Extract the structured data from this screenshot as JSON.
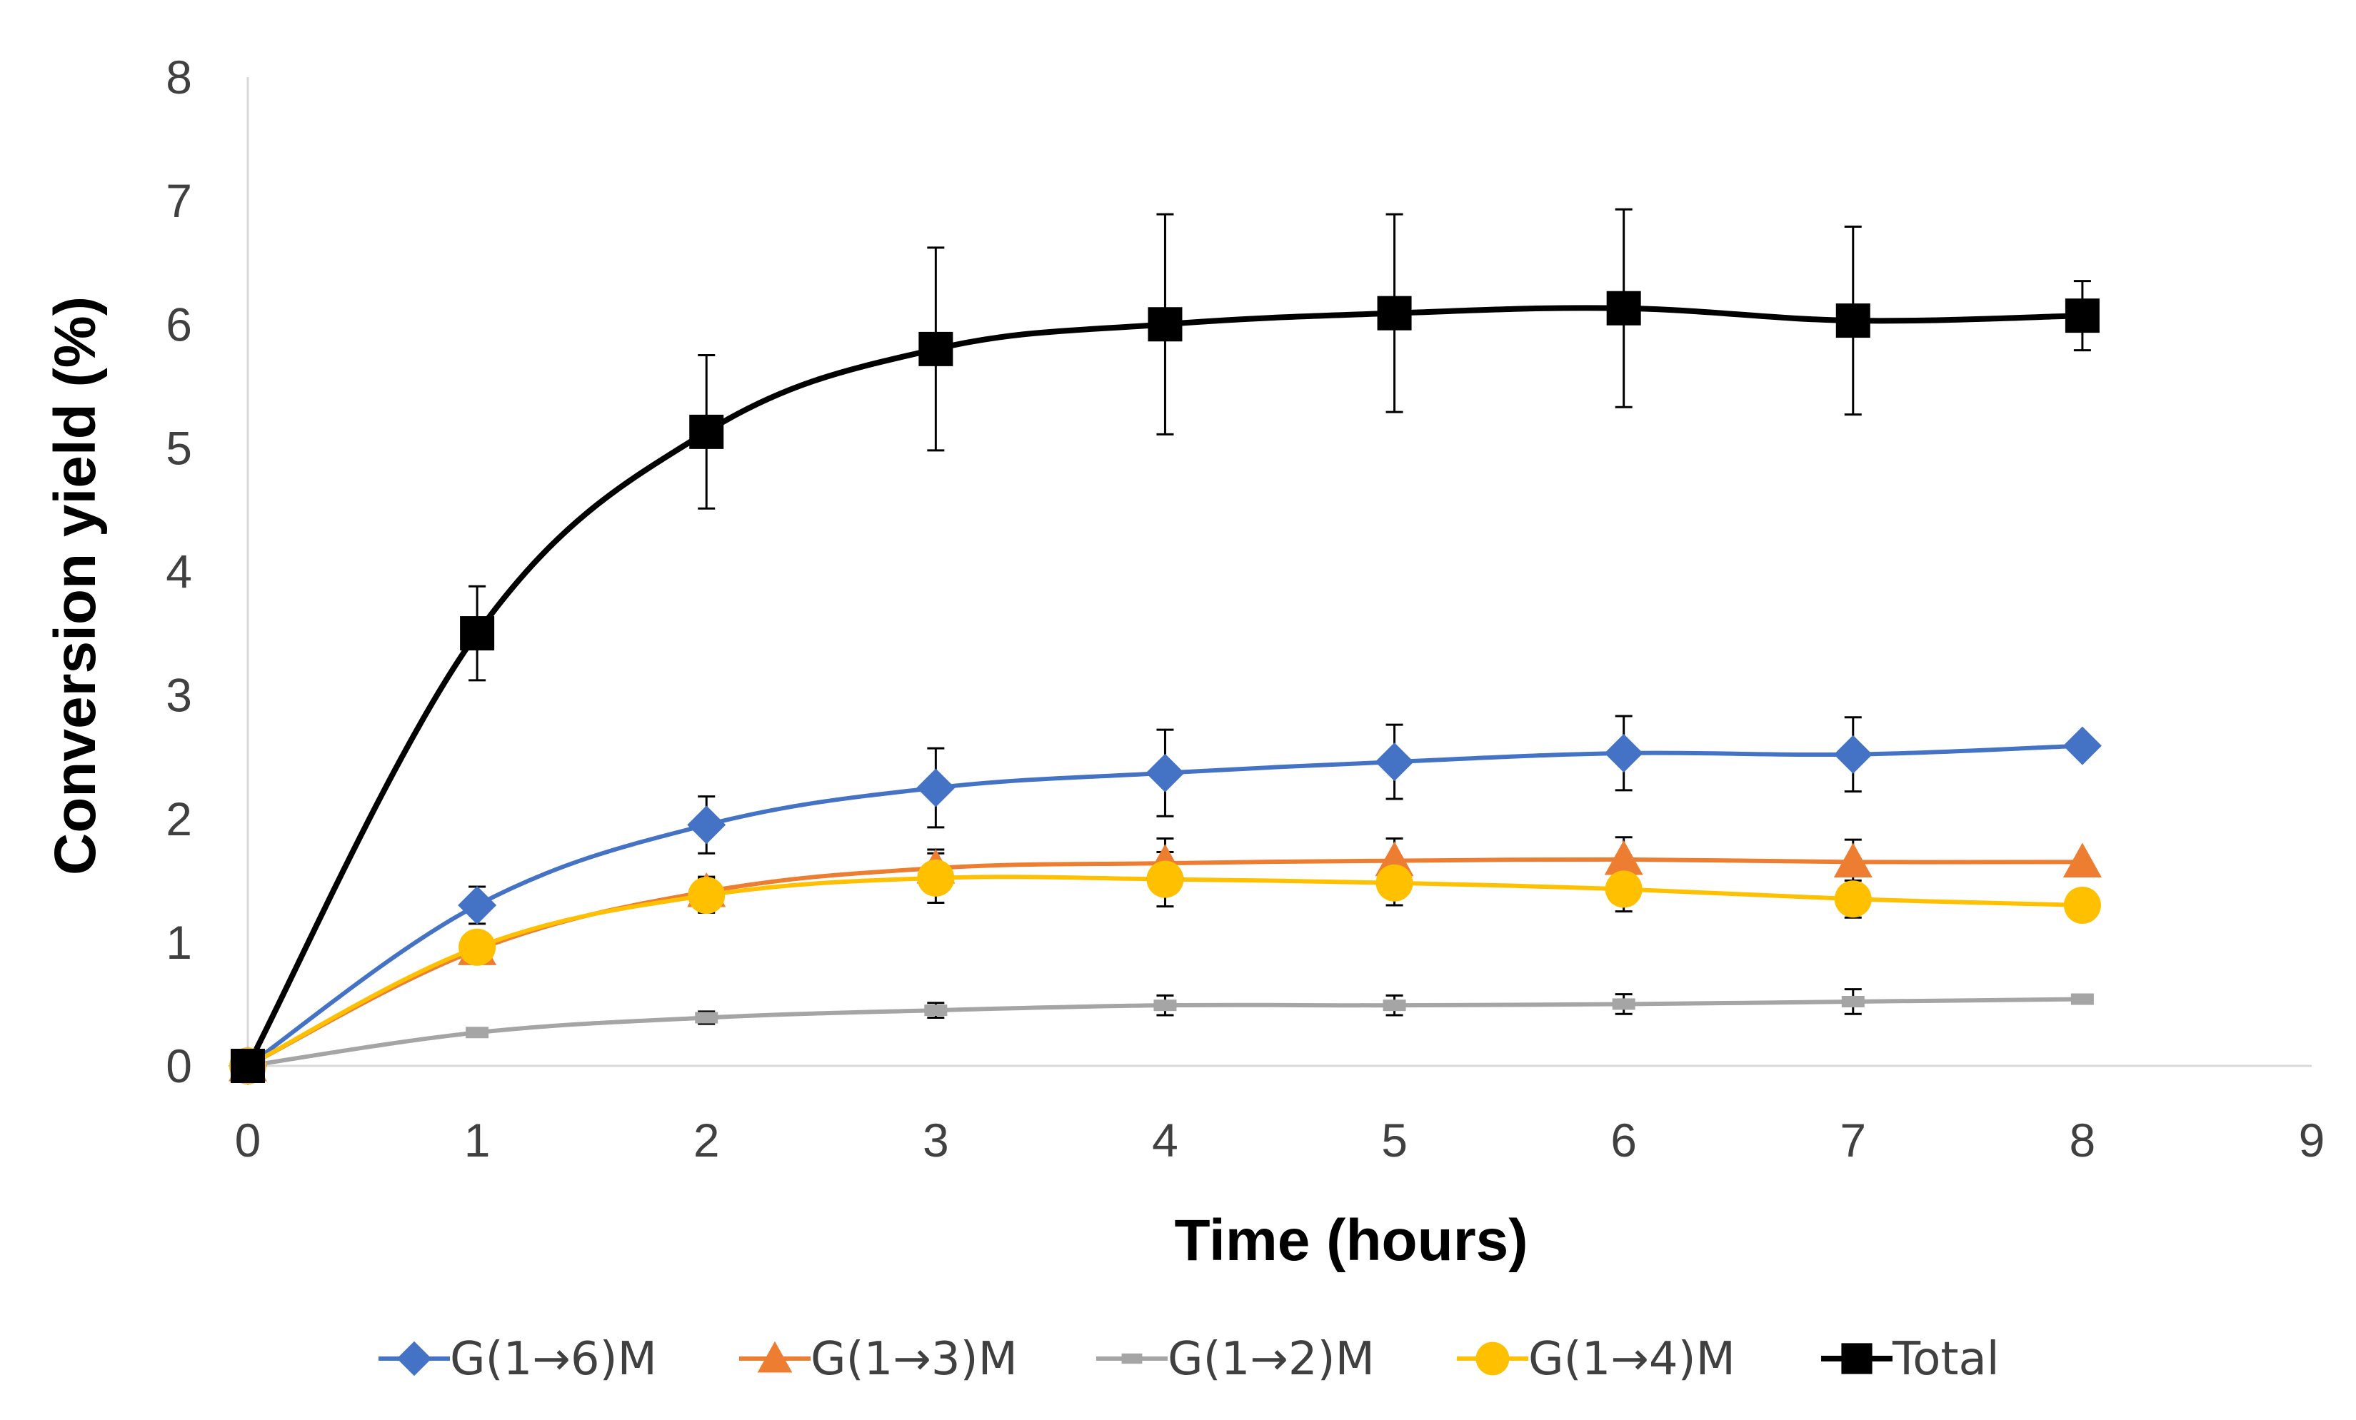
{
  "chart_data": {
    "type": "line",
    "title": "",
    "xlabel": "Time (hours)",
    "ylabel": "Conversion yield (%)",
    "xlim": [
      0,
      9
    ],
    "ylim": [
      0,
      8
    ],
    "xticks": [
      "0",
      "1",
      "2",
      "3",
      "4",
      "5",
      "6",
      "7",
      "8",
      "9"
    ],
    "yticks": [
      "0",
      "1",
      "2",
      "3",
      "4",
      "5",
      "6",
      "7",
      "8"
    ],
    "grid": false,
    "legend_position": "bottom",
    "x": [
      0,
      1,
      2,
      3,
      4,
      5,
      6,
      7,
      8
    ],
    "series": [
      {
        "name": "G(1→6)M",
        "color": "#4472C4",
        "marker": "diamond",
        "values": [
          0,
          1.3,
          1.95,
          2.25,
          2.37,
          2.46,
          2.53,
          2.52,
          2.59
        ],
        "errors": [
          0,
          0.15,
          0.23,
          0.32,
          0.35,
          0.3,
          0.3,
          0.3,
          0
        ]
      },
      {
        "name": "G(1→3)M",
        "color": "#ED7D31",
        "marker": "triangle",
        "values": [
          0,
          0.94,
          1.41,
          1.6,
          1.64,
          1.66,
          1.67,
          1.65,
          1.65
        ],
        "errors": [
          0,
          0.08,
          0.12,
          0.15,
          0.2,
          0.18,
          0.18,
          0.18,
          0
        ]
      },
      {
        "name": "G(1→2)M",
        "color": "#A5A5A5",
        "marker": "dash",
        "values": [
          0,
          0.27,
          0.39,
          0.45,
          0.49,
          0.49,
          0.5,
          0.52,
          0.54
        ],
        "errors": [
          0,
          0.02,
          0.05,
          0.06,
          0.08,
          0.08,
          0.08,
          0.1,
          0.03
        ]
      },
      {
        "name": "G(1→4)M",
        "color": "#FFC000",
        "marker": "circle",
        "values": [
          0,
          0.96,
          1.38,
          1.52,
          1.51,
          1.48,
          1.43,
          1.35,
          1.3
        ],
        "errors": [
          0,
          0.08,
          0.14,
          0.2,
          0.22,
          0.18,
          0.18,
          0.15,
          0
        ]
      },
      {
        "name": "Total",
        "color": "#000000",
        "marker": "square",
        "values": [
          0,
          3.5,
          5.13,
          5.8,
          6.0,
          6.09,
          6.13,
          6.03,
          6.07
        ],
        "errors": [
          0,
          0.38,
          0.62,
          0.82,
          0.89,
          0.8,
          0.8,
          0.76,
          0.28
        ]
      }
    ]
  }
}
